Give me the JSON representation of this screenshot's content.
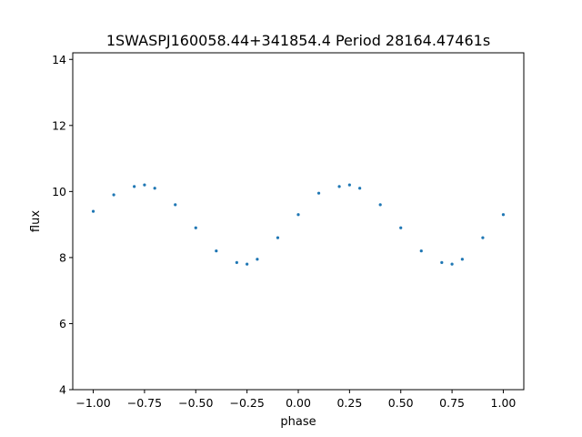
{
  "chart_data": {
    "type": "scatter",
    "title": "1SWASPJ160058.44+341854.4 Period 28164.47461s",
    "xlabel": "phase",
    "ylabel": "flux",
    "xlim": [
      -1.1,
      1.1
    ],
    "ylim": [
      4.0,
      14.2
    ],
    "xticks": [
      -1.0,
      -0.75,
      -0.5,
      -0.25,
      0.0,
      0.25,
      0.5,
      0.75,
      1.0
    ],
    "xtick_labels": [
      "−1.00",
      "−0.75",
      "−0.50",
      "−0.25",
      "0.00",
      "0.25",
      "0.50",
      "0.75",
      "1.00"
    ],
    "yticks": [
      4,
      6,
      8,
      10,
      12,
      14
    ],
    "ytick_labels": [
      "4",
      "6",
      "8",
      "10",
      "12",
      "14"
    ],
    "grid": false,
    "point_color": "#1f77b4",
    "series": [
      {
        "x": [
          -1.0,
          -0.9,
          -0.8,
          -0.75,
          -0.7,
          -0.6,
          -0.5,
          -0.4,
          -0.3,
          -0.25,
          -0.2,
          -0.1,
          0.0,
          0.1,
          0.2,
          0.25,
          0.3,
          0.4,
          0.5,
          0.6,
          0.7,
          0.75,
          0.8,
          0.9,
          1.0
        ],
        "y": [
          9.4,
          9.9,
          10.15,
          10.2,
          10.1,
          9.6,
          8.9,
          8.2,
          7.85,
          7.8,
          7.95,
          8.6,
          9.3,
          9.95,
          10.15,
          10.2,
          10.1,
          9.6,
          8.9,
          8.2,
          7.85,
          7.8,
          7.95,
          8.6,
          9.3
        ]
      }
    ]
  }
}
